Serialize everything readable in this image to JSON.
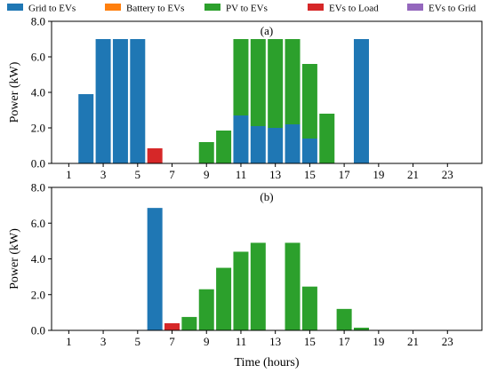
{
  "colors": {
    "grid_to_evs": "#1f77b4",
    "battery_to_evs": "#ff7f0e",
    "pv_to_evs": "#2ca02c",
    "evs_to_load": "#d62728",
    "evs_to_grid": "#9467bd"
  },
  "legend": {
    "placement": "top",
    "entries": [
      {
        "key": "grid_to_evs",
        "label": "Grid to EVs"
      },
      {
        "key": "battery_to_evs",
        "label": "Battery to EVs"
      },
      {
        "key": "pv_to_evs",
        "label": "PV to EVs"
      },
      {
        "key": "evs_to_load",
        "label": "EVs to Load"
      },
      {
        "key": "evs_to_grid",
        "label": "EVs to Grid"
      }
    ]
  },
  "chart_data": [
    {
      "type": "bar",
      "stacked": true,
      "title": "(a)",
      "xlabel": "",
      "ylabel": "Power (kW)",
      "xlim": [
        0,
        25
      ],
      "ylim": [
        0,
        8
      ],
      "xticks": [
        1,
        3,
        5,
        7,
        9,
        11,
        13,
        15,
        17,
        19,
        21,
        23
      ],
      "yticks": [
        0,
        2,
        4,
        6,
        8
      ],
      "ytick_labels": [
        "0.0",
        "2.0",
        "4.0",
        "6.0",
        "8.0"
      ],
      "grid": false,
      "x": [
        1,
        2,
        3,
        4,
        5,
        6,
        7,
        8,
        9,
        10,
        11,
        12,
        13,
        14,
        15,
        16,
        17,
        18,
        19,
        20,
        21,
        22,
        23,
        24
      ],
      "series": [
        {
          "key": "grid_to_evs",
          "name": "Grid to EVs",
          "values": [
            0,
            3.9,
            7.0,
            7.0,
            7.0,
            0,
            0,
            0,
            0,
            0,
            2.7,
            2.1,
            2.0,
            2.2,
            1.4,
            0,
            0,
            7.0,
            0,
            0,
            0,
            0,
            0,
            0
          ]
        },
        {
          "key": "battery_to_evs",
          "name": "Battery to EVs",
          "values": [
            0,
            0,
            0,
            0,
            0,
            0,
            0,
            0,
            0,
            0,
            0,
            0,
            0,
            0,
            0,
            0,
            0,
            0,
            0,
            0,
            0,
            0,
            0,
            0
          ]
        },
        {
          "key": "pv_to_evs",
          "name": "PV to EVs",
          "values": [
            0,
            0,
            0,
            0,
            0,
            0,
            0,
            0,
            1.2,
            1.85,
            4.3,
            4.9,
            5.0,
            4.8,
            4.2,
            2.8,
            0,
            0,
            0,
            0,
            0,
            0,
            0,
            0
          ]
        },
        {
          "key": "evs_to_load",
          "name": "EVs to Load",
          "values": [
            0,
            0,
            0,
            0,
            0,
            0.85,
            0,
            0,
            0,
            0,
            0,
            0,
            0,
            0,
            0,
            0,
            0,
            0,
            0,
            0,
            0,
            0,
            0,
            0
          ]
        },
        {
          "key": "evs_to_grid",
          "name": "EVs to Grid",
          "values": [
            0,
            0,
            0,
            0,
            0,
            0,
            0,
            0,
            0,
            0,
            0,
            0,
            0,
            0,
            0,
            0,
            0,
            0,
            0,
            0,
            0,
            0,
            0,
            0
          ]
        }
      ]
    },
    {
      "type": "bar",
      "stacked": true,
      "title": "(b)",
      "xlabel": "Time (hours)",
      "ylabel": "Power (kW)",
      "xlim": [
        0,
        25
      ],
      "ylim": [
        0,
        8
      ],
      "xticks": [
        1,
        3,
        5,
        7,
        9,
        11,
        13,
        15,
        17,
        19,
        21,
        23
      ],
      "yticks": [
        0,
        2,
        4,
        6,
        8
      ],
      "ytick_labels": [
        "0.0",
        "2.0",
        "4.0",
        "6.0",
        "8.0"
      ],
      "grid": false,
      "x": [
        1,
        2,
        3,
        4,
        5,
        6,
        7,
        8,
        9,
        10,
        11,
        12,
        13,
        14,
        15,
        16,
        17,
        18,
        19,
        20,
        21,
        22,
        23,
        24
      ],
      "series": [
        {
          "key": "grid_to_evs",
          "name": "Grid to EVs",
          "values": [
            0,
            0,
            0,
            0,
            0,
            6.85,
            0,
            0,
            0,
            0,
            0,
            0,
            0,
            0,
            0,
            0,
            0,
            0,
            0,
            0,
            0,
            0,
            0,
            0
          ]
        },
        {
          "key": "battery_to_evs",
          "name": "Battery to EVs",
          "values": [
            0,
            0,
            0,
            0,
            0,
            0,
            0,
            0,
            0,
            0,
            0,
            0,
            0,
            0,
            0,
            0,
            0,
            0,
            0,
            0,
            0,
            0,
            0,
            0
          ]
        },
        {
          "key": "pv_to_evs",
          "name": "PV to EVs",
          "values": [
            0,
            0,
            0,
            0,
            0,
            0,
            0,
            0.75,
            2.3,
            3.5,
            4.4,
            4.9,
            0,
            4.9,
            2.45,
            0,
            1.2,
            0.15,
            0,
            0,
            0,
            0,
            0,
            0
          ]
        },
        {
          "key": "evs_to_load",
          "name": "EVs to Load",
          "values": [
            0,
            0,
            0,
            0,
            0,
            0,
            0.4,
            0,
            0,
            0,
            0,
            0,
            0,
            0,
            0,
            0,
            0,
            0,
            0,
            0,
            0,
            0,
            0,
            0
          ]
        },
        {
          "key": "evs_to_grid",
          "name": "EVs to Grid",
          "values": [
            0,
            0,
            0,
            0,
            0,
            0,
            0,
            0,
            0,
            0,
            0,
            0,
            0,
            0,
            0,
            0,
            0,
            0,
            0,
            0,
            0,
            0,
            0,
            0
          ]
        }
      ]
    }
  ]
}
